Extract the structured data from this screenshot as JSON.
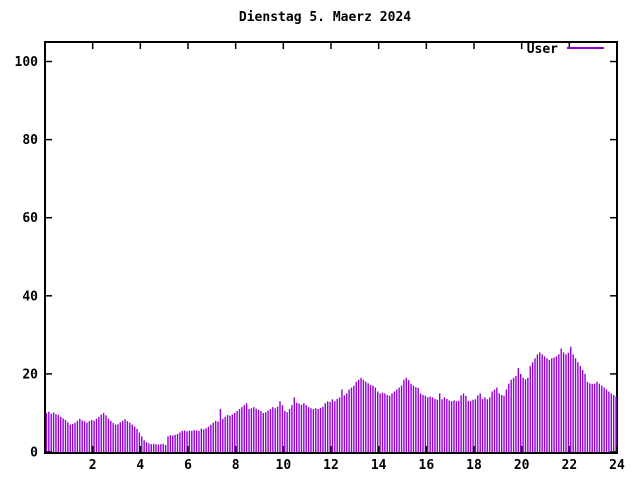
{
  "title": "Dienstag 5. Maerz 2024",
  "legend": {
    "label": "User"
  },
  "colors": {
    "series": "#9400d3",
    "axis": "#000000",
    "background": "#ffffff"
  },
  "chart_data": {
    "type": "bar",
    "title": "Dienstag 5. Maerz 2024",
    "series_name": "User",
    "x_unit": "hour_of_day",
    "x_step_minutes": 6,
    "xlim": [
      0,
      24
    ],
    "ylim": [
      0,
      105
    ],
    "x_ticks": [
      2,
      4,
      6,
      8,
      10,
      12,
      14,
      16,
      18,
      20,
      22,
      24
    ],
    "y_ticks": [
      0,
      20,
      40,
      60,
      80,
      100
    ],
    "grid": false,
    "legend_position": "top-right-inside",
    "values": [
      10,
      10.3,
      9.8,
      10.1,
      9.7,
      9.5,
      9,
      8.6,
      8.2,
      7.6,
      7,
      7.2,
      7.5,
      8,
      8.5,
      8.1,
      7.9,
      7.5,
      7.9,
      8.2,
      8,
      8.5,
      9,
      9.6,
      10,
      9.4,
      8.6,
      8,
      7.4,
      7,
      7.1,
      7.6,
      8,
      8.4,
      7.9,
      7.5,
      7,
      6.5,
      5.9,
      5,
      4,
      3,
      2.5,
      2.2,
      2,
      2.1,
      2,
      1.9,
      2,
      2.1,
      1.8,
      4,
      4.3,
      4.2,
      4.4,
      4.6,
      5,
      5.4,
      5.5,
      5.3,
      5.5,
      5.4,
      5.6,
      5.5,
      5.4,
      6,
      5.8,
      6.1,
      6.5,
      7,
      7.5,
      8,
      7.8,
      11,
      8.5,
      9,
      9.5,
      9.3,
      9.6,
      10,
      10.5,
      11,
      11.5,
      12,
      12.5,
      11,
      11.2,
      11.5,
      11.1,
      10.8,
      10.5,
      10,
      10.2,
      10.6,
      11,
      11.5,
      11.2,
      11.6,
      13,
      12,
      10.5,
      10.2,
      11,
      12,
      14,
      12.6,
      12.4,
      12.1,
      12.5,
      12,
      11.5,
      11.2,
      11,
      11.2,
      11,
      11.3,
      11.6,
      12.5,
      13,
      12.8,
      13.5,
      13,
      13.6,
      14,
      16,
      14.5,
      15,
      16,
      16.5,
      17,
      18,
      18.5,
      19,
      18.5,
      18,
      17.6,
      17.2,
      17,
      16.5,
      15.5,
      15,
      15.2,
      15,
      14.6,
      14.4,
      15,
      15.5,
      16,
      16.5,
      17,
      18.5,
      19,
      18.4,
      17.5,
      17,
      16.6,
      16.4,
      15,
      14.6,
      14.4,
      14,
      14.2,
      14,
      13.6,
      13.4,
      15,
      13.5,
      14,
      13.6,
      13.2,
      13,
      13.2,
      13,
      13.1,
      14.5,
      15,
      14.4,
      13.1,
      13,
      13.4,
      13.5,
      14.5,
      15,
      13.6,
      14,
      13.5,
      14,
      15.5,
      16,
      16.5,
      15,
      14.6,
      14.4,
      16,
      17.5,
      18.5,
      19,
      19.5,
      21.5,
      20,
      19,
      18.6,
      19,
      22,
      23,
      24,
      25,
      25.5,
      25,
      24.5,
      24,
      23.6,
      24,
      24.2,
      24.5,
      25,
      26.5,
      25.5,
      25,
      25.4,
      27,
      25,
      24,
      23,
      22,
      21,
      20,
      18,
      17.6,
      17.4,
      17.5,
      18,
      17.5,
      17,
      16.5,
      16,
      15.5,
      15,
      14.6,
      14.2
    ]
  }
}
